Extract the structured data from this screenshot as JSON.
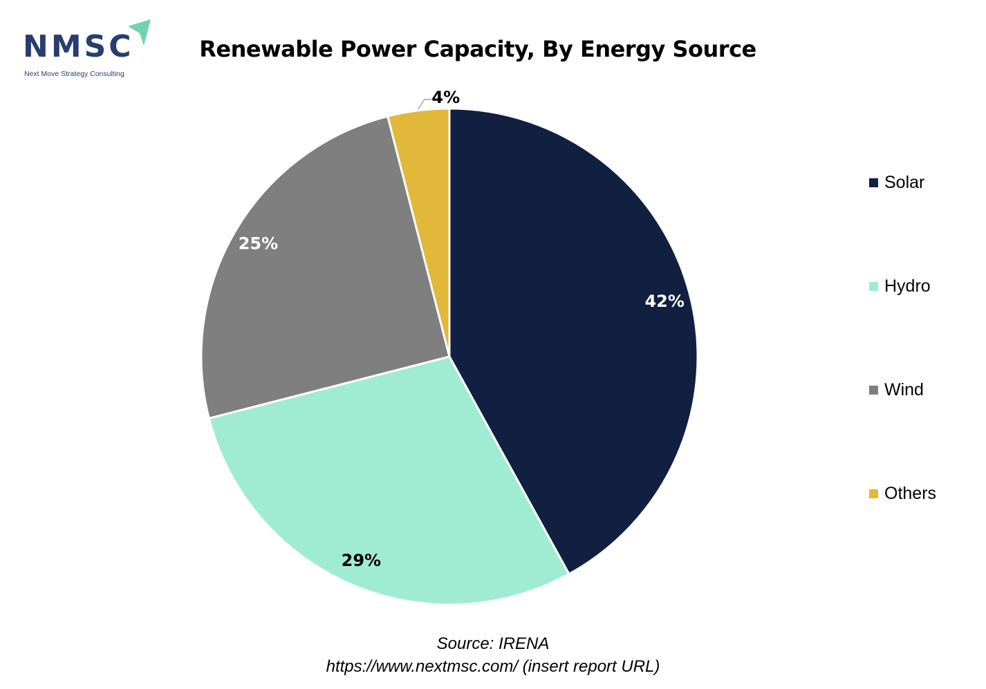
{
  "logo": {
    "text": "NMSC",
    "tagline": "Next Move Strategy Consulting"
  },
  "chart_data": {
    "type": "pie",
    "title": "Renewable Power Capacity, By Energy Source",
    "categories": [
      "Solar",
      "Hydro",
      "Wind",
      "Others"
    ],
    "values": [
      42,
      29,
      25,
      4
    ],
    "labels": [
      "42%",
      "29%",
      "25%",
      "4%"
    ],
    "colors": [
      "#111f40",
      "#a0ecd2",
      "#7f7f7f",
      "#e2b83b"
    ],
    "label_colors": [
      "#ffffff",
      "#000000",
      "#ffffff",
      "#000000"
    ],
    "legend_position": "right"
  },
  "source": {
    "line1": "Source:  IRENA",
    "line2": "https://www.nextmsc.com/ (insert report URL)"
  }
}
